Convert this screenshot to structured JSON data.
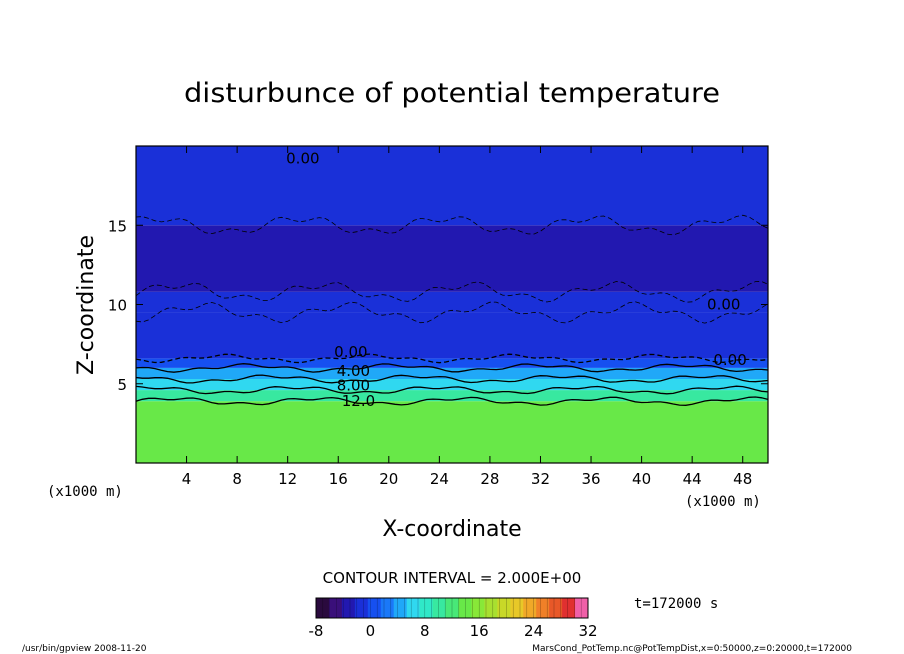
{
  "chart_data": {
    "type": "heatmap",
    "title": "disturbunce of potential temperature",
    "xlabel": "X-coordinate",
    "ylabel": "Z-coordinate",
    "x_unit_left": "(x1000 m)",
    "x_unit_right": "(x1000 m)",
    "xlim": [
      0,
      50
    ],
    "ylim": [
      0,
      20
    ],
    "x_ticks": [
      4,
      8,
      12,
      16,
      20,
      24,
      28,
      32,
      36,
      40,
      44,
      48
    ],
    "y_ticks": [
      5,
      10,
      15
    ],
    "contour_interval_label": "CONTOUR INTERVAL = 2.000E+00",
    "time_label": "t=172000 s",
    "colorbar": {
      "min": -8,
      "max": 32,
      "ticks": [
        -8,
        0,
        8,
        16,
        24,
        32
      ],
      "colors": [
        "#2a0a3e",
        "#3a0f7a",
        "#2218b0",
        "#1a30d8",
        "#1650f0",
        "#1a78f8",
        "#20a8f8",
        "#30d8f0",
        "#30e8c8",
        "#38e8a0",
        "#48e878",
        "#68e848",
        "#88e838",
        "#a8e030",
        "#c8d828",
        "#e8c828",
        "#f0a828",
        "#f08028",
        "#e85828",
        "#e03030",
        "#f060a8"
      ]
    },
    "contour_labels": [
      {
        "text": "0.00",
        "x": 13.2,
        "z": 19.2
      },
      {
        "text": "0.00",
        "x": 17.0,
        "z": 7.0
      },
      {
        "text": "4.00",
        "x": 17.2,
        "z": 5.8
      },
      {
        "text": "8.00",
        "x": 17.2,
        "z": 4.9
      },
      {
        "text": "12.0",
        "x": 17.6,
        "z": 3.9
      },
      {
        "text": "0.00",
        "x": 46.5,
        "z": 10.0
      },
      {
        "text": "0.00",
        "x": 47.0,
        "z": 6.5
      }
    ],
    "field_bands": [
      {
        "z0": 0,
        "z1": 3.9,
        "value": 14
      },
      {
        "z0": 3.9,
        "z1": 4.6,
        "value": 11
      },
      {
        "z0": 4.6,
        "z1": 5.3,
        "value": 7
      },
      {
        "z0": 5.3,
        "z1": 6.0,
        "value": 4
      },
      {
        "z0": 6.0,
        "z1": 6.6,
        "value": 1
      },
      {
        "z0": 6.6,
        "z1": 9.5,
        "value": -2
      },
      {
        "z0": 9.5,
        "z1": 10.8,
        "value": -1
      },
      {
        "z0": 10.8,
        "z1": 15.0,
        "value": -2.5
      },
      {
        "z0": 15.0,
        "z1": 20.0,
        "value": -1.5
      }
    ]
  },
  "footer": {
    "left": "/usr/bin/gpview   2008-11-20",
    "right": "MarsCond_PotTemp.nc@PotTempDist,x=0:50000,z=0:20000,t=172000"
  }
}
